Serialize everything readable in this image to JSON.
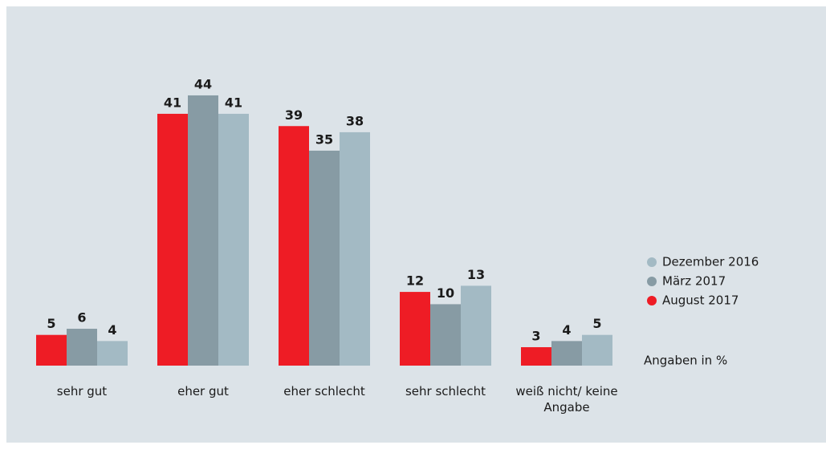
{
  "chart_data": {
    "type": "bar",
    "categories": [
      "sehr gut",
      "eher gut",
      "eher schlecht",
      "sehr schlecht",
      "weiß nicht/ keine Angabe"
    ],
    "series": [
      {
        "name": "August 2017",
        "color": "#ee1c25",
        "values": [
          5,
          41,
          39,
          12,
          3
        ]
      },
      {
        "name": "März 2017",
        "color": "#879ba4",
        "values": [
          6,
          44,
          35,
          10,
          4
        ]
      },
      {
        "name": "Dezember 2016",
        "color": "#a3bac4",
        "values": [
          4,
          41,
          38,
          13,
          5
        ]
      }
    ],
    "legend_order": [
      2,
      1,
      0
    ],
    "note": "Angaben in %"
  }
}
